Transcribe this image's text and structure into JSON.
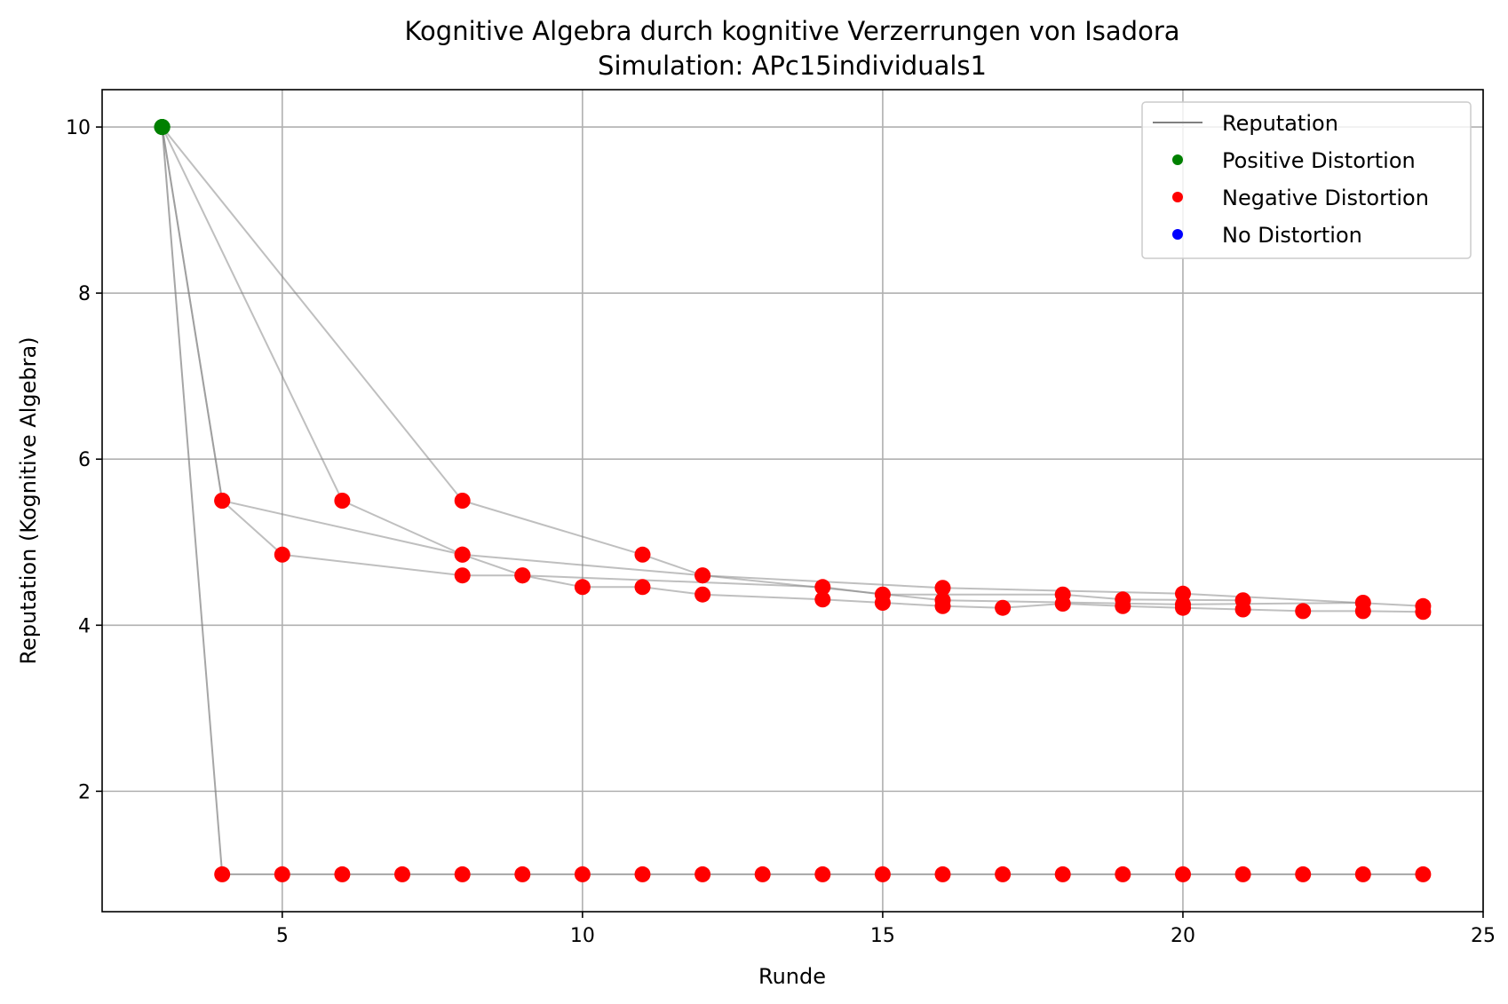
{
  "chart_data": {
    "type": "scatter",
    "title": "Kognitive Algebra durch kognitive Verzerrungen von Isadora",
    "subtitle": "Simulation: APc15individuals1",
    "xlabel": "Runde",
    "ylabel": "Reputation (Kognitive Algebra)",
    "xlim": [
      2,
      25
    ],
    "ylim": [
      0.55,
      10.45
    ],
    "xticks": [
      "5",
      "10",
      "15",
      "20",
      "25"
    ],
    "yticks": [
      "2",
      "4",
      "6",
      "8",
      "10"
    ],
    "grid": true,
    "legend_position": "top-right",
    "legend": [
      {
        "label": "Reputation",
        "kind": "line",
        "color": "#808080"
      },
      {
        "label": "Positive Distortion",
        "kind": "marker",
        "color": "#008000"
      },
      {
        "label": "Negative Distortion",
        "kind": "marker",
        "color": "#ff0000"
      },
      {
        "label": "No Distortion",
        "kind": "marker",
        "color": "#0000ff"
      }
    ],
    "colors": {
      "positive": "#008000",
      "negative": "#ff0000",
      "neutral": "#0000ff",
      "line": "#808080"
    },
    "series": [
      {
        "line": "dark",
        "x": [
          3,
          4,
          5,
          6,
          7,
          8,
          9,
          10,
          11,
          12,
          13,
          14,
          15,
          16,
          17,
          18,
          19,
          20,
          21,
          22,
          23,
          24
        ],
        "y": [
          10,
          1,
          1,
          1,
          1,
          1,
          1,
          1,
          1,
          1,
          1,
          1,
          1,
          1,
          1,
          1,
          1,
          1,
          1,
          1,
          1,
          1
        ],
        "distortion": [
          "positive",
          "negative",
          "negative",
          "negative",
          "negative",
          "negative",
          "negative",
          "negative",
          "negative",
          "negative",
          "negative",
          "negative",
          "negative",
          "negative",
          "negative",
          "negative",
          "negative",
          "negative",
          "negative",
          "negative",
          "negative",
          "negative"
        ]
      },
      {
        "line": "light",
        "x": [
          3,
          4,
          8,
          12,
          16,
          20,
          24
        ],
        "y": [
          10,
          5.5,
          4.85,
          4.6,
          4.45,
          4.38,
          4.23
        ],
        "distortion": [
          "positive",
          "negative",
          "negative",
          "negative",
          "negative",
          "negative",
          "negative"
        ]
      },
      {
        "line": "light",
        "x": [
          3,
          4,
          5,
          8,
          9,
          10,
          11,
          12,
          14,
          15,
          16,
          17,
          18,
          19,
          20,
          21,
          22,
          23,
          24
        ],
        "y": [
          10,
          5.5,
          4.85,
          4.6,
          4.6,
          4.46,
          4.46,
          4.37,
          4.31,
          4.27,
          4.23,
          4.21,
          4.26,
          4.23,
          4.21,
          4.19,
          4.17,
          4.17,
          4.16
        ],
        "distortion": [
          "positive",
          "negative",
          "negative",
          "negative",
          "negative",
          "negative",
          "negative",
          "negative",
          "negative",
          "negative",
          "negative",
          "negative",
          "negative",
          "negative",
          "negative",
          "negative",
          "negative",
          "negative",
          "negative"
        ]
      },
      {
        "line": "light",
        "x": [
          3,
          6,
          8,
          9,
          14,
          15,
          18,
          19,
          21
        ],
        "y": [
          10,
          5.5,
          4.85,
          4.6,
          4.46,
          4.37,
          4.37,
          4.31,
          4.3
        ],
        "distortion": [
          "positive",
          "negative",
          "negative",
          "negative",
          "negative",
          "negative",
          "negative",
          "negative",
          "negative"
        ]
      },
      {
        "line": "light",
        "x": [
          3,
          8,
          11,
          12,
          16,
          20,
          23
        ],
        "y": [
          10,
          5.5,
          4.85,
          4.6,
          4.3,
          4.25,
          4.27
        ],
        "distortion": [
          "positive",
          "negative",
          "negative",
          "negative",
          "negative",
          "negative",
          "negative"
        ]
      }
    ]
  }
}
